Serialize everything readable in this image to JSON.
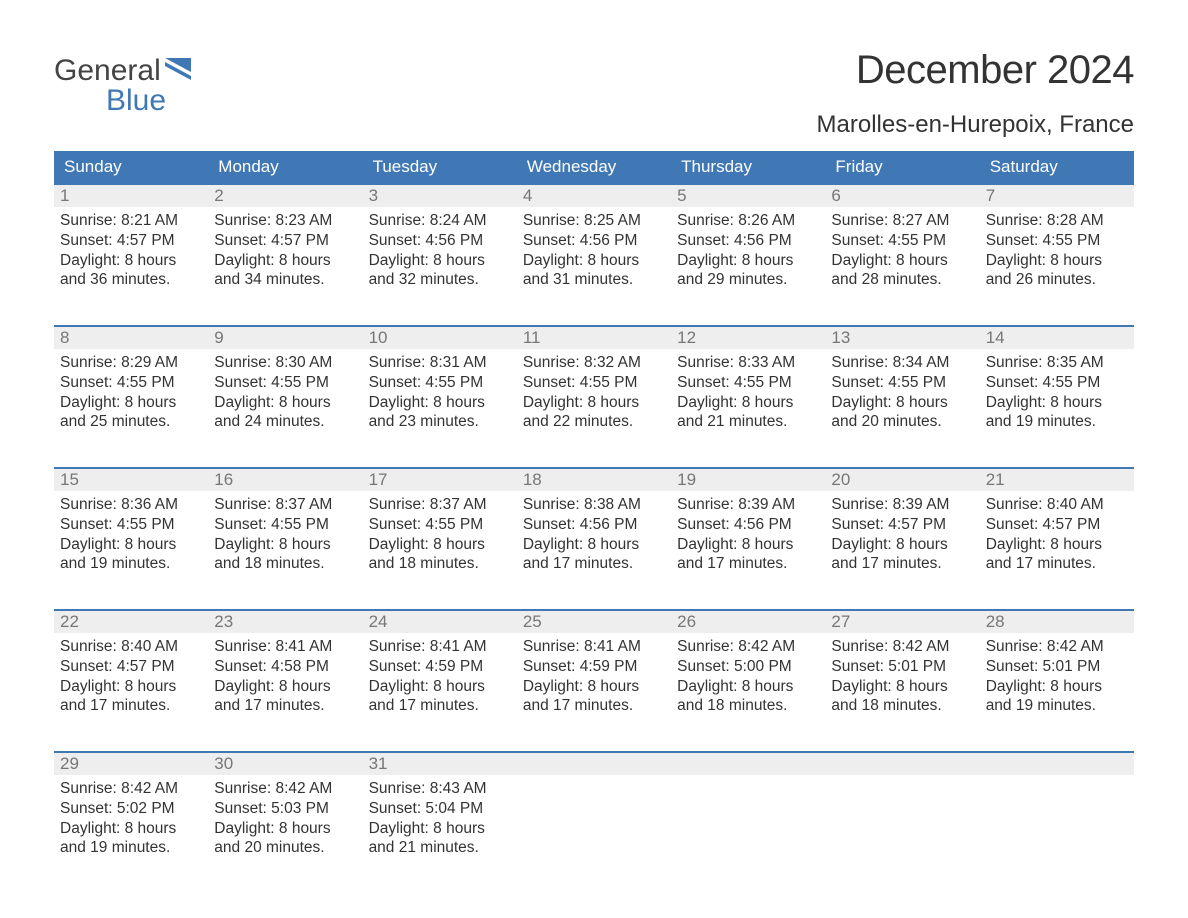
{
  "colors": {
    "header_bg": "#3f78b5",
    "header_text": "#ffffff",
    "daynum_bg": "#eeeeee",
    "daynum_text": "#777777",
    "week_border": "#3f78b5",
    "body_text": "#333333",
    "page_bg": "#ffffff",
    "logo_general": "#444444",
    "logo_blue": "#3f78b5"
  },
  "logo": {
    "line1": "General",
    "line2": "Blue"
  },
  "title": "December 2024",
  "subtitle": "Marolles-en-Hurepoix, France",
  "day_labels": [
    "Sunday",
    "Monday",
    "Tuesday",
    "Wednesday",
    "Thursday",
    "Friday",
    "Saturday"
  ],
  "weeks": [
    [
      {
        "n": "1",
        "sunrise": "8:21 AM",
        "sunset": "4:57 PM",
        "dlh": "8",
        "dlm": "36"
      },
      {
        "n": "2",
        "sunrise": "8:23 AM",
        "sunset": "4:57 PM",
        "dlh": "8",
        "dlm": "34"
      },
      {
        "n": "3",
        "sunrise": "8:24 AM",
        "sunset": "4:56 PM",
        "dlh": "8",
        "dlm": "32"
      },
      {
        "n": "4",
        "sunrise": "8:25 AM",
        "sunset": "4:56 PM",
        "dlh": "8",
        "dlm": "31"
      },
      {
        "n": "5",
        "sunrise": "8:26 AM",
        "sunset": "4:56 PM",
        "dlh": "8",
        "dlm": "29"
      },
      {
        "n": "6",
        "sunrise": "8:27 AM",
        "sunset": "4:55 PM",
        "dlh": "8",
        "dlm": "28"
      },
      {
        "n": "7",
        "sunrise": "8:28 AM",
        "sunset": "4:55 PM",
        "dlh": "8",
        "dlm": "26"
      }
    ],
    [
      {
        "n": "8",
        "sunrise": "8:29 AM",
        "sunset": "4:55 PM",
        "dlh": "8",
        "dlm": "25"
      },
      {
        "n": "9",
        "sunrise": "8:30 AM",
        "sunset": "4:55 PM",
        "dlh": "8",
        "dlm": "24"
      },
      {
        "n": "10",
        "sunrise": "8:31 AM",
        "sunset": "4:55 PM",
        "dlh": "8",
        "dlm": "23"
      },
      {
        "n": "11",
        "sunrise": "8:32 AM",
        "sunset": "4:55 PM",
        "dlh": "8",
        "dlm": "22"
      },
      {
        "n": "12",
        "sunrise": "8:33 AM",
        "sunset": "4:55 PM",
        "dlh": "8",
        "dlm": "21"
      },
      {
        "n": "13",
        "sunrise": "8:34 AM",
        "sunset": "4:55 PM",
        "dlh": "8",
        "dlm": "20"
      },
      {
        "n": "14",
        "sunrise": "8:35 AM",
        "sunset": "4:55 PM",
        "dlh": "8",
        "dlm": "19"
      }
    ],
    [
      {
        "n": "15",
        "sunrise": "8:36 AM",
        "sunset": "4:55 PM",
        "dlh": "8",
        "dlm": "19"
      },
      {
        "n": "16",
        "sunrise": "8:37 AM",
        "sunset": "4:55 PM",
        "dlh": "8",
        "dlm": "18"
      },
      {
        "n": "17",
        "sunrise": "8:37 AM",
        "sunset": "4:55 PM",
        "dlh": "8",
        "dlm": "18"
      },
      {
        "n": "18",
        "sunrise": "8:38 AM",
        "sunset": "4:56 PM",
        "dlh": "8",
        "dlm": "17"
      },
      {
        "n": "19",
        "sunrise": "8:39 AM",
        "sunset": "4:56 PM",
        "dlh": "8",
        "dlm": "17"
      },
      {
        "n": "20",
        "sunrise": "8:39 AM",
        "sunset": "4:57 PM",
        "dlh": "8",
        "dlm": "17"
      },
      {
        "n": "21",
        "sunrise": "8:40 AM",
        "sunset": "4:57 PM",
        "dlh": "8",
        "dlm": "17"
      }
    ],
    [
      {
        "n": "22",
        "sunrise": "8:40 AM",
        "sunset": "4:57 PM",
        "dlh": "8",
        "dlm": "17"
      },
      {
        "n": "23",
        "sunrise": "8:41 AM",
        "sunset": "4:58 PM",
        "dlh": "8",
        "dlm": "17"
      },
      {
        "n": "24",
        "sunrise": "8:41 AM",
        "sunset": "4:59 PM",
        "dlh": "8",
        "dlm": "17"
      },
      {
        "n": "25",
        "sunrise": "8:41 AM",
        "sunset": "4:59 PM",
        "dlh": "8",
        "dlm": "17"
      },
      {
        "n": "26",
        "sunrise": "8:42 AM",
        "sunset": "5:00 PM",
        "dlh": "8",
        "dlm": "18"
      },
      {
        "n": "27",
        "sunrise": "8:42 AM",
        "sunset": "5:01 PM",
        "dlh": "8",
        "dlm": "18"
      },
      {
        "n": "28",
        "sunrise": "8:42 AM",
        "sunset": "5:01 PM",
        "dlh": "8",
        "dlm": "19"
      }
    ],
    [
      {
        "n": "29",
        "sunrise": "8:42 AM",
        "sunset": "5:02 PM",
        "dlh": "8",
        "dlm": "19"
      },
      {
        "n": "30",
        "sunrise": "8:42 AM",
        "sunset": "5:03 PM",
        "dlh": "8",
        "dlm": "20"
      },
      {
        "n": "31",
        "sunrise": "8:43 AM",
        "sunset": "5:04 PM",
        "dlh": "8",
        "dlm": "21"
      },
      null,
      null,
      null,
      null
    ]
  ],
  "labels": {
    "sunrise": "Sunrise: ",
    "sunset": "Sunset: ",
    "daylight1": "Daylight: ",
    "hours": " hours",
    "and": "and ",
    "minutes": " minutes."
  }
}
